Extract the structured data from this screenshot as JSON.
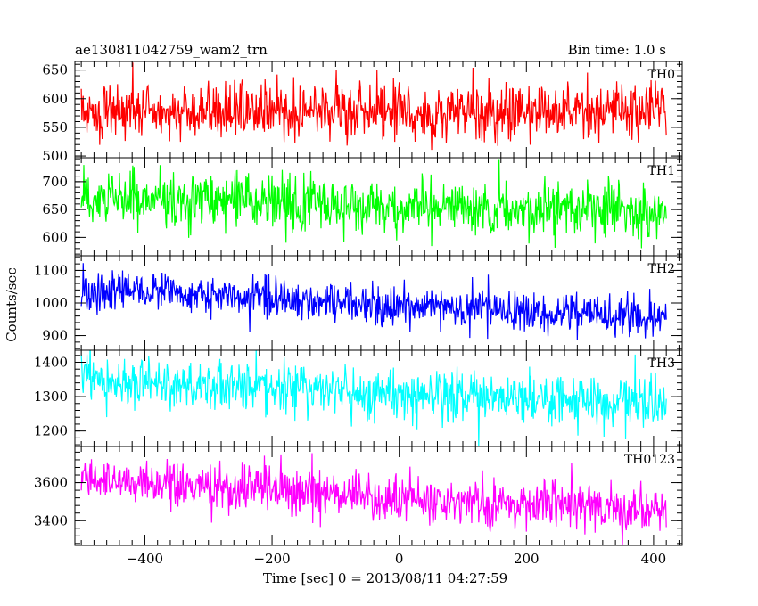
{
  "chart_data": {
    "type": "line",
    "title": "ae130811042759_wam2_trn",
    "subtitle": "Bin time: 1.0 s",
    "xlabel": "Time [sec] 0 = 2013/08/11 04:27:59",
    "ylabel": "Counts/sec",
    "xlim": [
      -510,
      445
    ],
    "x_range": [
      -500,
      420
    ],
    "x_step": 1,
    "x_ticks": [
      -400,
      -200,
      0,
      200,
      400
    ],
    "x_tick_labels": [
      "−400",
      "−200",
      "0",
      "200",
      "400"
    ],
    "grid": false,
    "panels": [
      {
        "name": "TH0",
        "color": "#ff0000",
        "ylim": [
          497,
          665
        ],
        "y_ticks": [
          500,
          550,
          600,
          650
        ],
        "mean_start": 578,
        "mean_end": 578,
        "noise": 24
      },
      {
        "name": "TH1",
        "color": "#00ff00",
        "ylim": [
          567,
          743
        ],
        "y_ticks": [
          600,
          650,
          700
        ],
        "mean_start": 670,
        "mean_end": 645,
        "noise": 25
      },
      {
        "name": "TH2",
        "color": "#0000ff",
        "ylim": [
          855,
          1145
        ],
        "y_ticks": [
          900,
          1000,
          1100
        ],
        "mean_start": 1045,
        "mean_end": 950,
        "noise": 30
      },
      {
        "name": "TH3",
        "color": "#00ffff",
        "ylim": [
          1155,
          1435
        ],
        "y_ticks": [
          1200,
          1300,
          1400
        ],
        "mean_start": 1345,
        "mean_end": 1280,
        "noise": 38
      },
      {
        "name": "TH0123",
        "color": "#ff00ff",
        "ylim": [
          3270,
          3790
        ],
        "y_ticks": [
          3400,
          3600
        ],
        "mean_start": 3615,
        "mean_end": 3445,
        "noise": 62
      }
    ]
  }
}
